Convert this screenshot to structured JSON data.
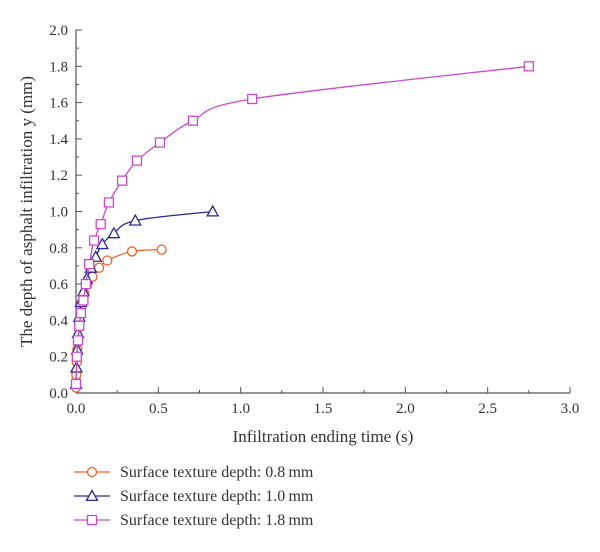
{
  "chart_data": {
    "type": "line",
    "xlabel": "Infiltration ending time (s)",
    "ylabel": "The depth of asphalt infiltration y (mm)",
    "xlim": [
      0,
      3.0
    ],
    "ylim": [
      0,
      2.0
    ],
    "xticks": [
      "0.0",
      "0.5",
      "1.0",
      "1.5",
      "2.0",
      "2.5",
      "3.0"
    ],
    "yticks": [
      "0.0",
      "0.2",
      "0.4",
      "0.6",
      "0.8",
      "1.0",
      "1.2",
      "1.4",
      "1.6",
      "1.8",
      "2.0"
    ],
    "grid": false,
    "legend_position": "bottom",
    "series": [
      {
        "name": "Surface texture depth: 0.8 mm",
        "color": "#e8642a",
        "marker": "circle",
        "x": [
          0.0,
          0.002,
          0.005,
          0.008,
          0.012,
          0.018,
          0.025,
          0.035,
          0.05,
          0.07,
          0.1,
          0.14,
          0.19,
          0.34,
          0.52
        ],
        "y": [
          0.03,
          0.1,
          0.17,
          0.24,
          0.31,
          0.38,
          0.44,
          0.5,
          0.55,
          0.6,
          0.64,
          0.69,
          0.73,
          0.78,
          0.79
        ]
      },
      {
        "name": "Surface texture depth: 1.0 mm",
        "color": "#2a2a8a",
        "marker": "triangle",
        "x": [
          0.0,
          0.003,
          0.007,
          0.012,
          0.02,
          0.03,
          0.045,
          0.065,
          0.09,
          0.12,
          0.16,
          0.23,
          0.36,
          0.83
        ],
        "y": [
          0.05,
          0.14,
          0.24,
          0.33,
          0.42,
          0.5,
          0.56,
          0.63,
          0.69,
          0.75,
          0.82,
          0.88,
          0.95,
          1.0
        ]
      },
      {
        "name": "Surface texture depth: 1.8 mm",
        "color": "#c84ac8",
        "marker": "square",
        "x": [
          0.0,
          0.005,
          0.012,
          0.02,
          0.03,
          0.045,
          0.06,
          0.08,
          0.11,
          0.15,
          0.2,
          0.28,
          0.37,
          0.51,
          0.71,
          1.07,
          2.75
        ],
        "y": [
          0.05,
          0.2,
          0.29,
          0.37,
          0.44,
          0.51,
          0.6,
          0.71,
          0.84,
          0.93,
          1.05,
          1.17,
          1.28,
          1.38,
          1.5,
          1.62,
          1.8
        ]
      }
    ]
  }
}
